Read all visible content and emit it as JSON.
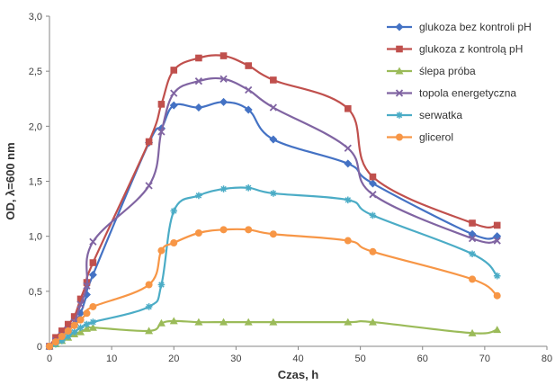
{
  "chart_data": {
    "type": "line",
    "xlabel": "Czas, h",
    "ylabel": "OD, λ=600 nm",
    "xlim": [
      0,
      80
    ],
    "ylim": [
      0,
      3.0
    ],
    "xticks": [
      "0",
      "10",
      "20",
      "30",
      "40",
      "50",
      "60",
      "70",
      "80"
    ],
    "yticks": [
      "0",
      "0,5",
      "1,0",
      "1,5",
      "2,0",
      "2,5",
      "3,0"
    ],
    "grid": false,
    "legend_position": "top-right",
    "series": [
      {
        "name": "glukoza bez kontroli pH",
        "color": "#4472C4",
        "marker": "diamond",
        "x": [
          0,
          1,
          2,
          3,
          4,
          5,
          6,
          7,
          16,
          18,
          20,
          24,
          28,
          32,
          36,
          48,
          52,
          68,
          72
        ],
        "y": [
          0,
          0.03,
          0.08,
          0.14,
          0.2,
          0.3,
          0.47,
          0.65,
          1.85,
          1.98,
          2.19,
          2.17,
          2.22,
          2.15,
          1.88,
          1.66,
          1.48,
          1.02,
          1.0
        ]
      },
      {
        "name": "glukoza z kontrolą pH",
        "color": "#C0504D",
        "marker": "square",
        "x": [
          0,
          1,
          2,
          3,
          4,
          5,
          6,
          7,
          16,
          18,
          20,
          24,
          28,
          32,
          36,
          48,
          52,
          68,
          72
        ],
        "y": [
          0,
          0.08,
          0.14,
          0.2,
          0.27,
          0.43,
          0.58,
          0.76,
          1.86,
          2.2,
          2.51,
          2.62,
          2.64,
          2.55,
          2.42,
          2.16,
          1.54,
          1.12,
          1.1
        ]
      },
      {
        "name": "ślepa próba",
        "color": "#9BBB59",
        "marker": "triangle",
        "x": [
          0,
          1,
          2,
          3,
          4,
          5,
          6,
          7,
          16,
          18,
          20,
          24,
          28,
          32,
          36,
          48,
          52,
          68,
          72
        ],
        "y": [
          0,
          0.02,
          0.05,
          0.08,
          0.11,
          0.13,
          0.16,
          0.17,
          0.14,
          0.21,
          0.23,
          0.22,
          0.22,
          0.22,
          0.22,
          0.22,
          0.22,
          0.12,
          0.15
        ]
      },
      {
        "name": "topola energetyczna",
        "color": "#8064A2",
        "marker": "x",
        "x": [
          0,
          1,
          2,
          3,
          4,
          5,
          6,
          7,
          16,
          18,
          20,
          24,
          28,
          32,
          36,
          48,
          52,
          68,
          72
        ],
        "y": [
          0,
          0.05,
          0.1,
          0.15,
          0.22,
          0.38,
          0.55,
          0.95,
          1.46,
          1.95,
          2.3,
          2.41,
          2.43,
          2.33,
          2.17,
          1.8,
          1.38,
          0.98,
          0.96
        ]
      },
      {
        "name": "serwatka",
        "color": "#4BACC6",
        "marker": "star",
        "x": [
          0,
          1,
          2,
          3,
          4,
          5,
          6,
          7,
          16,
          18,
          20,
          24,
          28,
          32,
          36,
          48,
          52,
          68,
          72
        ],
        "y": [
          0,
          0.02,
          0.05,
          0.09,
          0.13,
          0.17,
          0.2,
          0.22,
          0.36,
          0.56,
          1.23,
          1.37,
          1.43,
          1.44,
          1.39,
          1.33,
          1.19,
          0.84,
          0.64
        ]
      },
      {
        "name": "glicerol",
        "color": "#F79646",
        "marker": "circle",
        "x": [
          0,
          1,
          2,
          3,
          4,
          5,
          6,
          7,
          16,
          18,
          20,
          24,
          28,
          32,
          36,
          48,
          52,
          68,
          72
        ],
        "y": [
          0,
          0.04,
          0.09,
          0.14,
          0.19,
          0.24,
          0.3,
          0.36,
          0.56,
          0.87,
          0.94,
          1.03,
          1.06,
          1.06,
          1.02,
          0.96,
          0.86,
          0.61,
          0.46
        ]
      }
    ]
  }
}
